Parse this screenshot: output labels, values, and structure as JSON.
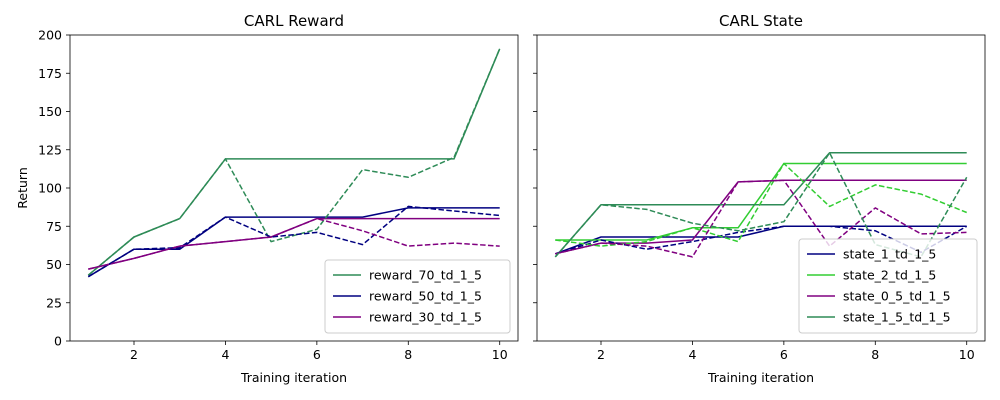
{
  "chart_data": [
    {
      "type": "line",
      "title": "CARL Reward",
      "xlabel": "Training iteration",
      "ylabel": "Return",
      "x": [
        1,
        2,
        3,
        4,
        5,
        6,
        7,
        8,
        9,
        10
      ],
      "xlim": [
        0.6,
        10.4
      ],
      "ylim": [
        0,
        200
      ],
      "xticks": [
        "2",
        "4",
        "6",
        "8",
        "10"
      ],
      "yticks": [
        "0",
        "25",
        "50",
        "75",
        "100",
        "125",
        "150",
        "175",
        "200"
      ],
      "legend_position": "lower right",
      "series": [
        {
          "name": "reward_70_td_1_5",
          "color": "#2e8b57",
          "style": "solid",
          "values": [
            43,
            68,
            80,
            119,
            119,
            119,
            119,
            119,
            119,
            191
          ]
        },
        {
          "name": "reward_50_td_1_5",
          "color": "#000080",
          "style": "solid",
          "values": [
            42,
            60,
            60,
            81,
            81,
            81,
            81,
            87,
            87,
            87
          ]
        },
        {
          "name": "reward_30_td_1_5",
          "color": "#800080",
          "style": "solid",
          "values": [
            47,
            54,
            62,
            65,
            68,
            80,
            80,
            80,
            80,
            80
          ]
        },
        {
          "name": "",
          "color": "#2e8b57",
          "style": "dashed",
          "values": [
            43,
            68,
            80,
            119,
            65,
            73,
            112,
            107,
            120,
            191
          ]
        },
        {
          "name": "",
          "color": "#000080",
          "style": "dashed",
          "values": [
            42,
            60,
            61,
            81,
            68,
            71,
            63,
            88,
            85,
            82
          ]
        },
        {
          "name": "",
          "color": "#800080",
          "style": "dashed",
          "values": [
            47,
            54,
            62,
            65,
            68,
            80,
            72,
            62,
            64,
            62
          ]
        }
      ]
    },
    {
      "type": "line",
      "title": "CARL State",
      "xlabel": "Training iteration",
      "ylabel": "",
      "x": [
        1,
        2,
        3,
        4,
        5,
        6,
        7,
        8,
        9,
        10
      ],
      "xlim": [
        0.6,
        10.4
      ],
      "ylim": [
        0,
        200
      ],
      "xticks": [
        "2",
        "4",
        "6",
        "8",
        "10"
      ],
      "yticks": [],
      "legend_position": "lower right",
      "series": [
        {
          "name": "state_1_td_1_5",
          "color": "#000080",
          "style": "solid",
          "values": [
            57,
            68,
            68,
            68,
            68,
            75,
            75,
            75,
            75,
            75
          ]
        },
        {
          "name": "state_2_td_1_5",
          "color": "#32cd32",
          "style": "solid",
          "values": [
            66,
            66,
            66,
            74,
            74,
            116,
            116,
            116,
            116,
            116
          ]
        },
        {
          "name": "state_0_5_td_1_5",
          "color": "#800080",
          "style": "solid",
          "values": [
            57,
            64,
            64,
            66,
            104,
            105,
            105,
            105,
            105,
            105
          ]
        },
        {
          "name": "state_1_5_td_1_5",
          "color": "#2e8b57",
          "style": "solid",
          "values": [
            55,
            89,
            89,
            89,
            89,
            89,
            123,
            123,
            123,
            123
          ]
        },
        {
          "name": "",
          "color": "#000080",
          "style": "dashed",
          "values": [
            57,
            66,
            60,
            65,
            71,
            75,
            75,
            72,
            58,
            75
          ]
        },
        {
          "name": "",
          "color": "#32cd32",
          "style": "dashed",
          "values": [
            66,
            62,
            65,
            74,
            65,
            116,
            88,
            102,
            96,
            84
          ]
        },
        {
          "name": "",
          "color": "#800080",
          "style": "dashed",
          "values": [
            57,
            64,
            62,
            55,
            104,
            105,
            62,
            87,
            70,
            71
          ]
        },
        {
          "name": "",
          "color": "#2e8b57",
          "style": "dashed",
          "values": [
            55,
            89,
            86,
            77,
            72,
            78,
            123,
            63,
            55,
            107
          ]
        }
      ]
    }
  ]
}
